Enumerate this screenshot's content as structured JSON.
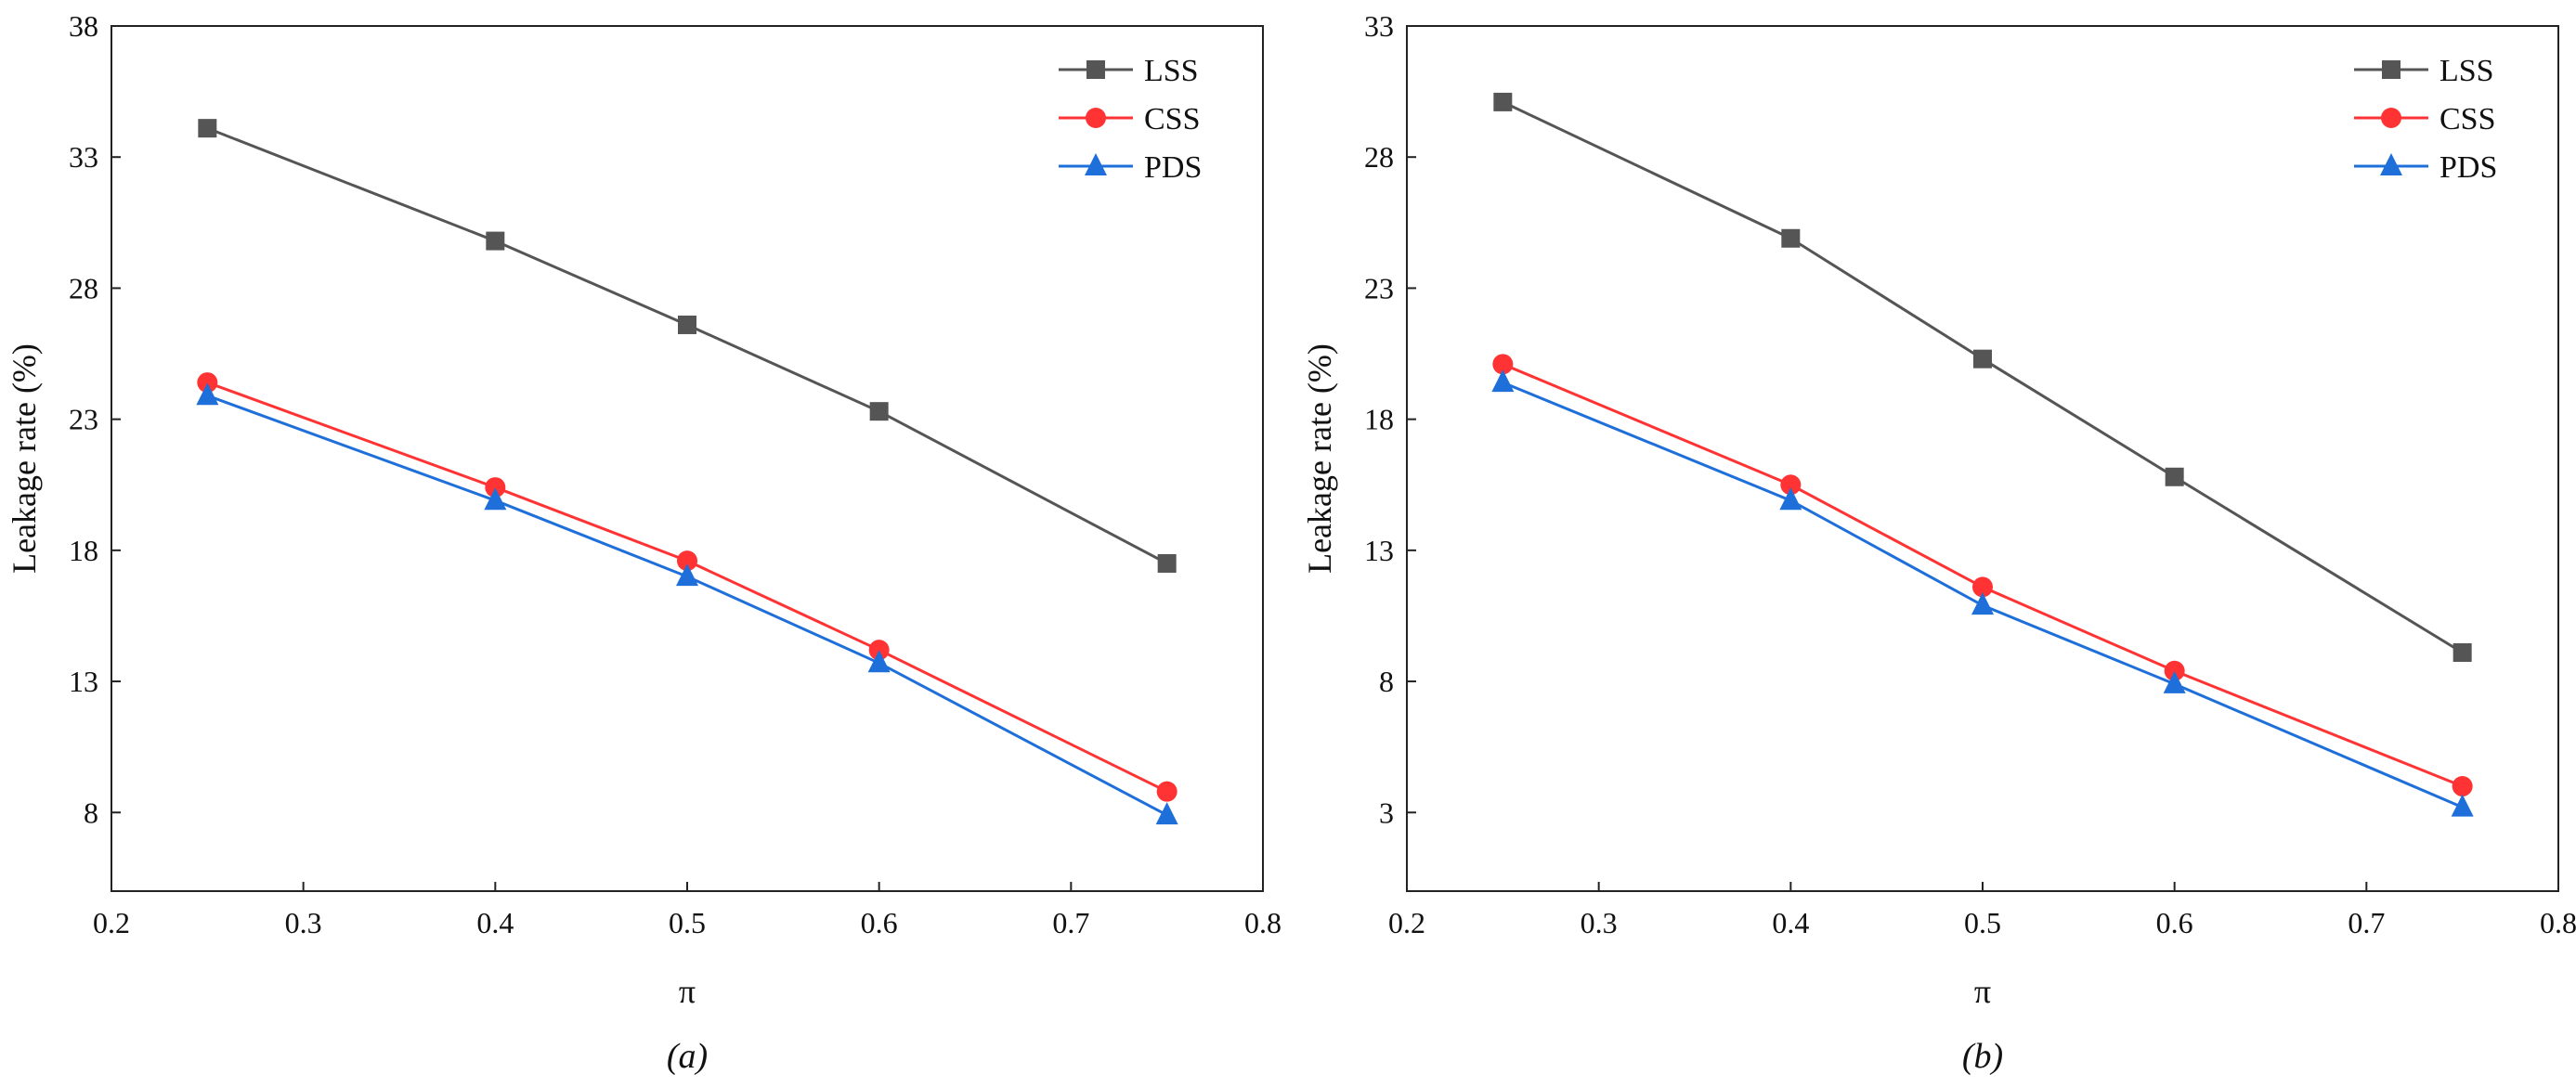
{
  "chart_data": [
    {
      "type": "line",
      "panel": "a",
      "caption": "(a)",
      "xlabel": "π",
      "ylabel": "Leakage rate (%)",
      "xlim": [
        0.2,
        0.8
      ],
      "ylim": [
        5,
        38
      ],
      "xticks": [
        0.2,
        0.3,
        0.4,
        0.5,
        0.6,
        0.7,
        0.8
      ],
      "xtick_labels": [
        "0.2",
        "0.3",
        "0.4",
        "0.5",
        "0.6",
        "0.7",
        "0.8"
      ],
      "yticks": [
        8,
        13,
        18,
        23,
        28,
        33,
        38
      ],
      "ytick_labels": [
        "8",
        "13",
        "18",
        "23",
        "28",
        "33",
        "38"
      ],
      "x": [
        0.25,
        0.4,
        0.5,
        0.6,
        0.75
      ],
      "series": [
        {
          "name": "LSS",
          "marker": "square",
          "color": "#555555",
          "values": [
            34.1,
            29.8,
            26.6,
            23.3,
            17.5
          ]
        },
        {
          "name": "CSS",
          "marker": "circle",
          "color": "#ff3333",
          "values": [
            24.4,
            20.4,
            17.6,
            14.2,
            8.8
          ]
        },
        {
          "name": "PDS",
          "marker": "triangle",
          "color": "#1e6fd9",
          "values": [
            23.9,
            19.9,
            17.0,
            13.7,
            7.9
          ]
        }
      ],
      "legend": {
        "position": "top-right",
        "entries": [
          "LSS",
          "CSS",
          "PDS"
        ]
      },
      "grid": false
    },
    {
      "type": "line",
      "panel": "b",
      "caption": "(b)",
      "xlabel": "π",
      "ylabel": "Leakage rate (%)",
      "xlim": [
        0.2,
        0.8
      ],
      "ylim": [
        0,
        33
      ],
      "xticks": [
        0.2,
        0.3,
        0.4,
        0.5,
        0.6,
        0.7,
        0.8
      ],
      "xtick_labels": [
        "0.2",
        "0.3",
        "0.4",
        "0.5",
        "0.6",
        "0.7",
        "0.8"
      ],
      "yticks": [
        3,
        8,
        13,
        18,
        23,
        28,
        33
      ],
      "ytick_labels": [
        "3",
        "8",
        "13",
        "18",
        "23",
        "28",
        "33"
      ],
      "x": [
        0.25,
        0.4,
        0.5,
        0.6,
        0.75
      ],
      "series": [
        {
          "name": "LSS",
          "marker": "square",
          "color": "#555555",
          "values": [
            30.1,
            24.9,
            20.3,
            15.8,
            9.1
          ]
        },
        {
          "name": "CSS",
          "marker": "circle",
          "color": "#ff3333",
          "values": [
            20.1,
            15.5,
            11.6,
            8.4,
            4.0
          ]
        },
        {
          "name": "PDS",
          "marker": "triangle",
          "color": "#1e6fd9",
          "values": [
            19.4,
            14.9,
            10.9,
            7.9,
            3.2
          ]
        }
      ],
      "legend": {
        "position": "top-right",
        "entries": [
          "LSS",
          "CSS",
          "PDS"
        ]
      },
      "grid": false
    }
  ]
}
